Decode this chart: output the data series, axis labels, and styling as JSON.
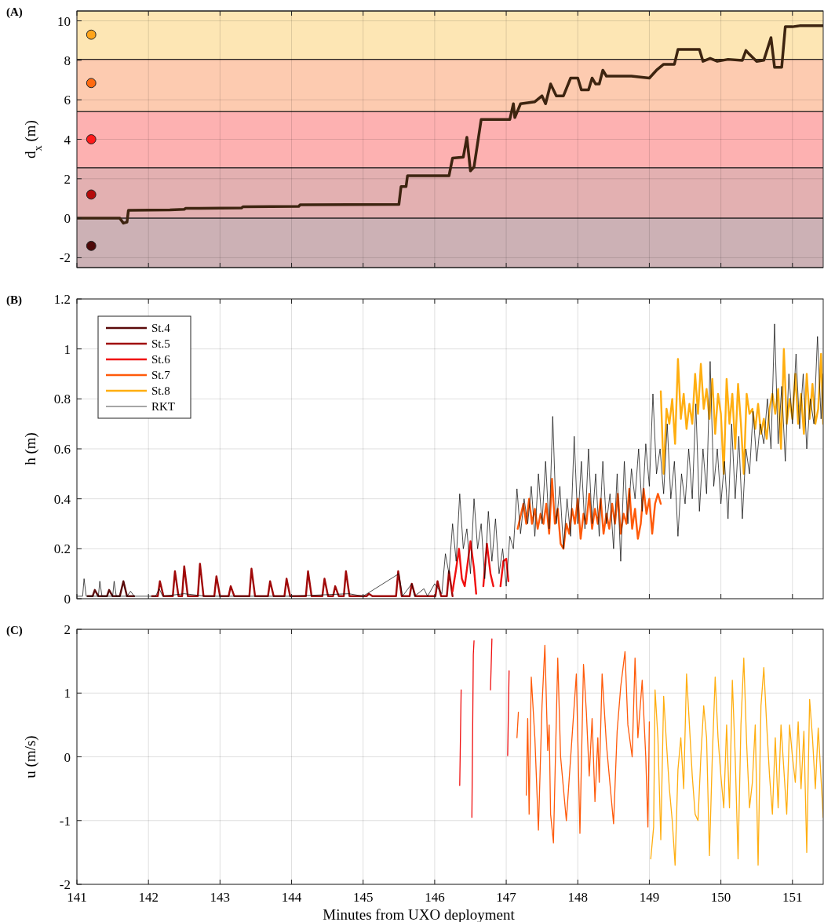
{
  "chart_data": [
    {
      "type": "line",
      "title": "(A)",
      "ylabel": "d$_{x}$ (m)",
      "xlim": [
        141,
        151.43
      ],
      "xticks": [
        141,
        142,
        143,
        144,
        145,
        146,
        147,
        148,
        149,
        150,
        151
      ],
      "ylim": [
        -2.5,
        10.5
      ],
      "yticks": [
        -2,
        0,
        2,
        4,
        6,
        8,
        10
      ],
      "tick_labels": "y",
      "grid": true,
      "bands": [
        {
          "axis": "y",
          "from": 8.05,
          "to": 10.5,
          "color": "#fde6b4"
        },
        {
          "axis": "y",
          "from": 5.4,
          "to": 8.05,
          "color": "#fdcbb0"
        },
        {
          "axis": "y",
          "from": 2.55,
          "to": 5.4,
          "color": "#fdb1b1"
        },
        {
          "axis": "y",
          "from": 0,
          "to": 2.55,
          "color": "#e3b0b1"
        },
        {
          "axis": "y",
          "from": -2.5,
          "to": 0,
          "color": "#ccb1b5"
        }
      ],
      "series": [
        {
          "color": "#3d2410",
          "x": [
            141.0,
            141.6,
            141.65,
            141.7,
            141.72,
            142.3,
            142.5,
            142.52,
            143.3,
            143.32,
            144.1,
            144.12,
            145.5,
            145.53,
            145.6,
            145.62,
            146.2,
            146.25,
            146.4,
            146.45,
            146.5,
            146.55,
            146.65,
            147.05,
            147.1,
            147.12,
            147.2,
            147.4,
            147.5,
            147.55,
            147.62,
            147.7,
            147.8,
            147.9,
            148.0,
            148.05,
            148.15,
            148.2,
            148.25,
            148.3,
            148.35,
            148.4,
            148.75,
            149.0,
            149.1,
            149.2,
            149.35,
            149.4,
            149.7,
            149.75,
            149.85,
            149.95,
            150.1,
            150.3,
            150.35,
            150.4,
            150.5,
            150.6,
            150.7,
            150.75,
            150.85,
            150.9,
            151.0,
            151.1,
            151.43
          ],
          "values": [
            0,
            0,
            -0.25,
            -0.2,
            0.4,
            0.42,
            0.45,
            0.5,
            0.52,
            0.58,
            0.6,
            0.68,
            0.7,
            1.6,
            1.6,
            2.15,
            2.15,
            3.05,
            3.1,
            4.1,
            2.4,
            2.6,
            5.0,
            5.0,
            5.8,
            5.1,
            5.8,
            5.9,
            6.2,
            5.8,
            6.8,
            6.2,
            6.2,
            7.1,
            7.1,
            6.5,
            6.5,
            7.1,
            6.8,
            6.8,
            7.5,
            7.2,
            7.2,
            7.1,
            7.5,
            7.8,
            7.8,
            8.55,
            8.55,
            7.95,
            8.1,
            7.95,
            8.05,
            8.0,
            8.5,
            8.3,
            7.95,
            8.0,
            9.15,
            7.65,
            7.65,
            9.7,
            9.7,
            9.75,
            9.75
          ]
        },
        {
          "type": "scatter",
          "marker": "circle",
          "x": [
            141.2,
            141.2,
            141.2,
            141.2,
            141.2
          ],
          "values": [
            9.3,
            6.85,
            4.0,
            1.2,
            -1.4
          ],
          "colors": [
            "#ffa41a",
            "#ff6a10",
            "#ff1a1a",
            "#b40a0a",
            "#4d0808"
          ]
        }
      ]
    },
    {
      "type": "line",
      "title": "(B)",
      "ylabel": "h (m)",
      "xlim": [
        141,
        151.43
      ],
      "xticks": [
        141,
        142,
        143,
        144,
        145,
        146,
        147,
        148,
        149,
        150,
        151
      ],
      "ylim": [
        0,
        1.2
      ],
      "yticks": [
        0,
        0.2,
        0.4,
        0.6,
        0.8,
        1,
        1.2
      ],
      "tick_labels": "y",
      "grid": true,
      "legend": "top left",
      "series": [
        {
          "name": "St.4",
          "color": "#5a0a0a",
          "x": [
            141.15,
            141.22,
            141.25,
            141.3,
            141.42,
            141.45,
            141.5,
            141.6,
            141.65,
            141.7,
            141.8
          ],
          "values": [
            0.01,
            0.01,
            0.035,
            0.01,
            0.01,
            0.035,
            0.01,
            0.01,
            0.07,
            0.01,
            0.01
          ]
        },
        {
          "name": "St.5",
          "color": "#a00808",
          "x": [
            142.05,
            142.13,
            142.16,
            142.21,
            142.34,
            142.37,
            142.42,
            142.47,
            142.5,
            142.55,
            142.69,
            142.72,
            142.77,
            142.92,
            142.95,
            143.0,
            143.12,
            143.15,
            143.2,
            143.41,
            143.44,
            143.49,
            143.67,
            143.7,
            143.75,
            143.9,
            143.93,
            143.98,
            144.2,
            144.23,
            144.28,
            144.43,
            144.46,
            144.51,
            144.58,
            144.61,
            144.66,
            144.73,
            144.76,
            144.81,
            145.05,
            145.08,
            145.13,
            145.46,
            145.49,
            145.54,
            145.65,
            145.68,
            145.73,
            146.01,
            146.04,
            146.09,
            146.17,
            146.2,
            146.25
          ],
          "values": [
            0.01,
            0.01,
            0.07,
            0.01,
            0.01,
            0.11,
            0.01,
            0.01,
            0.13,
            0.01,
            0.01,
            0.14,
            0.01,
            0.01,
            0.09,
            0.01,
            0.01,
            0.05,
            0.01,
            0.01,
            0.12,
            0.01,
            0.01,
            0.07,
            0.01,
            0.01,
            0.08,
            0.01,
            0.01,
            0.11,
            0.01,
            0.01,
            0.08,
            0.01,
            0.01,
            0.05,
            0.01,
            0.01,
            0.11,
            0.01,
            0.01,
            0.02,
            0.01,
            0.01,
            0.11,
            0.01,
            0.01,
            0.06,
            0.01,
            0.01,
            0.07,
            0.01,
            0.01,
            0.11,
            0.01
          ]
        },
        {
          "name": "St.6",
          "color": "#f01010",
          "x": [
            146.25,
            146.3,
            146.34,
            146.38,
            146.42,
            146.5,
            146.55,
            146.58,
            146.63,
            146.68,
            146.73,
            146.78,
            146.82,
            146.87,
            146.92,
            146.96,
            147.0,
            147.03
          ],
          "values": [
            0.03,
            0.12,
            0.2,
            0.08,
            0.05,
            0.23,
            0.12,
            0.02,
            null,
            0.05,
            0.22,
            0.1,
            0.05,
            null,
            0.05,
            0.15,
            0.16,
            0.07
          ]
        },
        {
          "name": "St.7",
          "color": "#ff5a0a",
          "x": [
            147.16,
            147.2,
            147.24,
            147.28,
            147.32,
            147.36,
            147.4,
            147.44,
            147.48,
            147.52,
            147.56,
            147.6,
            147.64,
            147.68,
            147.72,
            147.76,
            147.8,
            147.84,
            147.88,
            147.92,
            147.96,
            148.0,
            148.04,
            148.08,
            148.12,
            148.16,
            148.2,
            148.24,
            148.28,
            148.32,
            148.36,
            148.4,
            148.44,
            148.48,
            148.52,
            148.56,
            148.6,
            148.64,
            148.68,
            148.72,
            148.76,
            148.8,
            148.84,
            148.88,
            148.92,
            148.96,
            149.0,
            149.04,
            149.08,
            149.12,
            149.16
          ],
          "values": [
            0.28,
            0.33,
            0.38,
            0.3,
            0.4,
            0.3,
            0.36,
            0.28,
            0.34,
            0.3,
            0.38,
            0.26,
            0.48,
            0.3,
            0.36,
            0.22,
            0.2,
            0.3,
            0.26,
            0.36,
            0.3,
            0.4,
            0.24,
            0.34,
            0.3,
            0.42,
            0.28,
            0.36,
            0.3,
            0.4,
            0.26,
            0.34,
            0.28,
            0.38,
            0.3,
            0.42,
            0.26,
            0.34,
            0.3,
            0.44,
            0.28,
            0.36,
            0.24,
            0.3,
            0.44,
            0.34,
            0.4,
            0.26,
            0.38,
            0.42,
            0.38
          ]
        },
        {
          "name": "St.8",
          "color": "#ffae10",
          "x": [
            149.16,
            149.2,
            149.24,
            149.28,
            149.32,
            149.36,
            149.4,
            149.44,
            149.48,
            149.52,
            149.56,
            149.6,
            149.64,
            149.68,
            149.72,
            149.76,
            149.8,
            149.84,
            149.88,
            149.92,
            149.96,
            150.0,
            150.04,
            150.08,
            150.12,
            150.16,
            150.2,
            150.24,
            150.28,
            150.32,
            150.36,
            150.4,
            150.44,
            150.48,
            150.52,
            150.56,
            150.6,
            150.64,
            150.68,
            150.72,
            150.76,
            150.8,
            150.84,
            150.88,
            150.92,
            150.96,
            151.0,
            151.04,
            151.08,
            151.12,
            151.16,
            151.2,
            151.24,
            151.28,
            151.32,
            151.36,
            151.4,
            151.43
          ],
          "values": [
            0.83,
            0.5,
            0.76,
            0.7,
            0.8,
            0.62,
            0.96,
            0.72,
            0.82,
            0.68,
            0.78,
            0.7,
            0.9,
            0.74,
            0.94,
            0.76,
            0.84,
            0.72,
            0.88,
            0.66,
            0.82,
            0.74,
            0.5,
            0.88,
            0.7,
            0.82,
            0.6,
            0.86,
            0.7,
            0.5,
            0.82,
            0.74,
            0.76,
            0.68,
            0.78,
            0.66,
            0.72,
            0.64,
            0.76,
            0.82,
            0.74,
            0.84,
            0.6,
            1.0,
            0.7,
            0.8,
            0.72,
            0.9,
            0.7,
            0.82,
            0.66,
            0.9,
            0.72,
            0.86,
            0.7,
            0.76,
            0.98,
            0.7
          ]
        },
        {
          "name": "RKT",
          "color": "#000000",
          "x": [
            141.0,
            141.08,
            141.1,
            141.13,
            141.3,
            141.32,
            141.35,
            141.5,
            141.52,
            141.55,
            141.7,
            141.75,
            141.8,
            142.1,
            142.15,
            142.2,
            142.5,
            142.8,
            143.4,
            144.0,
            144.8,
            145.0,
            145.5,
            145.55,
            145.68,
            145.72,
            145.85,
            145.9,
            146.0,
            146.1,
            146.15,
            146.2,
            146.25,
            146.3,
            146.35,
            146.4,
            146.45,
            146.5,
            146.55,
            146.6,
            146.65,
            146.7,
            146.75,
            146.8,
            146.85,
            146.9,
            146.95,
            147.0,
            147.05,
            147.1,
            147.15,
            147.2,
            147.25,
            147.3,
            147.35,
            147.4,
            147.45,
            147.5,
            147.55,
            147.6,
            147.65,
            147.7,
            147.75,
            147.8,
            147.85,
            147.9,
            147.95,
            148.0,
            148.05,
            148.1,
            148.15,
            148.2,
            148.25,
            148.3,
            148.35,
            148.4,
            148.45,
            148.5,
            148.55,
            148.6,
            148.65,
            148.7,
            148.75,
            148.8,
            148.85,
            148.9,
            148.95,
            149.0,
            149.05,
            149.1,
            149.15,
            149.2,
            149.25,
            149.3,
            149.35,
            149.4,
            149.45,
            149.5,
            149.55,
            149.6,
            149.65,
            149.7,
            149.75,
            149.8,
            149.85,
            149.9,
            149.95,
            150.0,
            150.05,
            150.1,
            150.15,
            150.2,
            150.25,
            150.3,
            150.35,
            150.4,
            150.45,
            150.5,
            150.55,
            150.6,
            150.65,
            150.7,
            150.75,
            150.8,
            150.85,
            150.9,
            150.95,
            151.0,
            151.05,
            151.1,
            151.15,
            151.2,
            151.25,
            151.3,
            151.35,
            151.4,
            151.43
          ],
          "values": [
            0.01,
            0.01,
            0.08,
            0.01,
            0.01,
            0.07,
            0.01,
            0.01,
            0.07,
            0.01,
            0.01,
            0.03,
            0.01,
            0.01,
            0.04,
            0.01,
            0.02,
            0.01,
            0.01,
            0.01,
            0.02,
            0.01,
            0.1,
            0.01,
            0.06,
            0.01,
            0.04,
            0.01,
            0.06,
            0.02,
            0.18,
            0.1,
            0.3,
            0.15,
            0.42,
            0.2,
            0.28,
            0.1,
            0.4,
            0.2,
            0.3,
            0.08,
            0.35,
            0.15,
            0.32,
            0.1,
            0.2,
            0.05,
            0.25,
            0.2,
            0.44,
            0.26,
            0.4,
            0.3,
            0.45,
            0.25,
            0.5,
            0.3,
            0.55,
            0.28,
            0.73,
            0.3,
            0.45,
            0.2,
            0.4,
            0.25,
            0.65,
            0.3,
            0.55,
            0.28,
            0.6,
            0.3,
            0.5,
            0.25,
            0.55,
            0.3,
            0.42,
            0.2,
            0.5,
            0.15,
            0.55,
            0.3,
            0.52,
            0.4,
            0.6,
            0.35,
            0.62,
            0.45,
            0.82,
            0.5,
            0.6,
            0.42,
            0.7,
            0.4,
            0.55,
            0.25,
            0.5,
            0.38,
            0.6,
            0.4,
            0.78,
            0.35,
            0.6,
            0.42,
            0.95,
            0.45,
            0.6,
            0.38,
            0.55,
            0.32,
            0.7,
            0.4,
            0.65,
            0.32,
            0.6,
            0.5,
            0.75,
            0.55,
            0.7,
            0.62,
            0.8,
            0.6,
            1.1,
            0.62,
            0.85,
            0.55,
            0.9,
            0.7,
            0.98,
            0.68,
            0.9,
            0.6,
            0.8,
            0.7,
            1.05,
            0.72,
            0.9
          ]
        }
      ]
    },
    {
      "type": "line",
      "title": "(C)",
      "ylabel": "u (m/s)",
      "xlabel": "Minutes from UXO deployment",
      "xlim": [
        141,
        151.43
      ],
      "xticks": [
        141,
        142,
        143,
        144,
        145,
        146,
        147,
        148,
        149,
        150,
        151
      ],
      "ylim": [
        -2,
        2
      ],
      "yticks": [
        -2,
        -1,
        0,
        1,
        2
      ],
      "grid": true,
      "series": [
        {
          "color": "#f01010",
          "x": [
            146.35,
            146.37,
            146.38,
            146.52,
            146.54,
            146.55,
            146.56,
            146.78,
            146.8,
            146.81,
            147.02,
            147.04
          ],
          "values": [
            -0.45,
            1.05,
            null,
            -0.95,
            1.6,
            1.82,
            null,
            1.05,
            1.85,
            null,
            0.02,
            1.35
          ]
        },
        {
          "color": "#ff5a0a",
          "x": [
            147.15,
            147.17,
            147.2,
            147.28,
            147.3,
            147.32,
            147.35,
            147.4,
            147.45,
            147.5,
            147.54,
            147.58,
            147.6,
            147.62,
            147.66,
            147.72,
            147.76,
            147.8,
            147.84,
            147.98,
            148.0,
            148.03,
            148.08,
            148.12,
            148.16,
            148.2,
            148.24,
            148.28,
            148.3,
            148.34,
            148.4,
            148.44,
            148.5,
            148.55,
            148.6,
            148.66,
            148.7,
            148.76,
            148.8,
            148.84,
            148.9,
            148.95,
            148.98,
            149.0
          ],
          "values": [
            0.3,
            0.7,
            null,
            -0.6,
            0.6,
            -0.9,
            1.25,
            0.3,
            -1.15,
            0.8,
            1.75,
            0.1,
            0.5,
            -0.9,
            -1.35,
            1.55,
            0.0,
            -0.5,
            -1.0,
            1.3,
            0.3,
            -1.2,
            1.45,
            0.7,
            -0.3,
            0.6,
            -0.7,
            0.3,
            -0.4,
            1.3,
            0.2,
            -0.3,
            -1.05,
            0.4,
            1.1,
            1.65,
            0.5,
            0.0,
            1.55,
            0.3,
            1.2,
            0.0,
            -1.1,
            0.55
          ]
        },
        {
          "color": "#ffae10",
          "x": [
            149.02,
            149.06,
            149.08,
            149.12,
            149.16,
            149.2,
            149.24,
            149.28,
            149.32,
            149.36,
            149.4,
            149.44,
            149.48,
            149.52,
            149.56,
            149.6,
            149.64,
            149.68,
            149.72,
            149.76,
            149.8,
            149.84,
            149.88,
            149.92,
            149.96,
            150.0,
            150.04,
            150.08,
            150.12,
            150.16,
            150.2,
            150.24,
            150.28,
            150.32,
            150.36,
            150.4,
            150.44,
            150.48,
            150.52,
            150.56,
            150.6,
            150.64,
            150.68,
            150.72,
            150.76,
            150.8,
            150.84,
            150.88,
            150.92,
            150.96,
            151.0,
            151.04,
            151.08,
            151.12,
            151.16,
            151.2,
            151.24,
            151.28,
            151.32,
            151.36,
            151.43
          ],
          "values": [
            -1.6,
            -1.1,
            1.05,
            0.3,
            -1.3,
            0.95,
            0.2,
            -0.5,
            -1.0,
            -1.7,
            -0.2,
            0.3,
            -0.5,
            1.3,
            0.5,
            -0.3,
            -0.9,
            -1.0,
            0.0,
            0.8,
            0.3,
            -1.55,
            0.0,
            1.25,
            0.3,
            -0.3,
            -0.8,
            0.5,
            -0.8,
            1.2,
            0.0,
            -1.6,
            0.5,
            1.55,
            0.2,
            -0.8,
            -0.4,
            0.5,
            -1.7,
            0.8,
            1.4,
            0.5,
            -0.3,
            -0.9,
            0.3,
            -0.8,
            0.5,
            -0.2,
            -0.9,
            0.5,
            0.0,
            -0.4,
            0.55,
            -0.5,
            0.4,
            -1.5,
            0.9,
            0.3,
            -0.5,
            0.45,
            -0.95
          ]
        }
      ]
    }
  ]
}
